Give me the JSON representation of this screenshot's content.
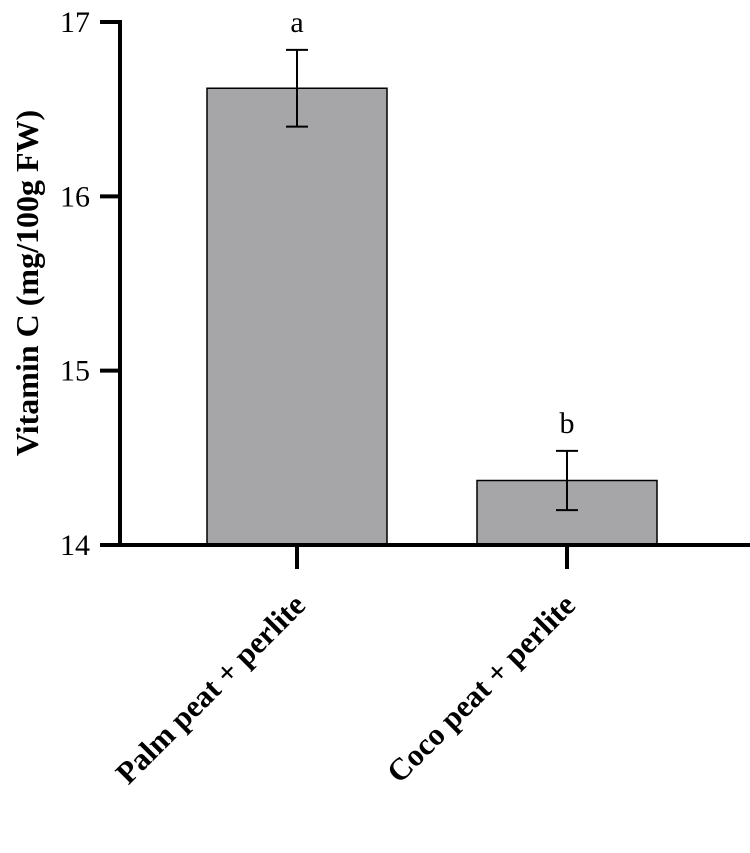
{
  "chart_data": {
    "type": "bar",
    "title": "",
    "xlabel": "",
    "ylabel": "Vitamin C (mg/100g FW)",
    "ylim": [
      14,
      17
    ],
    "yticks": [
      14,
      15,
      16,
      17
    ],
    "categories": [
      "Palm peat + perlite",
      "Coco peat + perlite"
    ],
    "values": [
      16.62,
      14.37
    ],
    "error": [
      0.22,
      0.17
    ],
    "significance": [
      "a",
      "b"
    ],
    "bar_color": "#a6a6a8",
    "grid": false,
    "legend": "none"
  }
}
